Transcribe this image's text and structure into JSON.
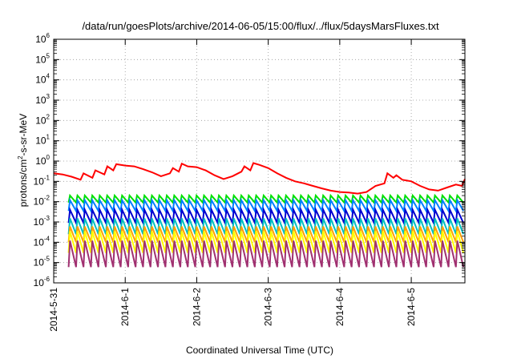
{
  "chart_data": {
    "type": "line",
    "title": "/data/run/goesPlots/archive/2014-06-05/15:00/flux/../flux/5daysMarsFluxes.txt",
    "xlabel": "Coordinated Universal Time (UTC)",
    "ylabel": {
      "prefix": "protons/cm",
      "superscript": "2",
      "suffix": "-s-sr-MeV"
    },
    "y_scale": "log",
    "ylim": [
      1e-06,
      1000000.0
    ],
    "y_ticks": [
      {
        "value": 1e-06,
        "base": "10",
        "exp": "-6"
      },
      {
        "value": 1e-05,
        "base": "10",
        "exp": "-5"
      },
      {
        "value": 0.0001,
        "base": "10",
        "exp": "-4"
      },
      {
        "value": 0.001,
        "base": "10",
        "exp": "-3"
      },
      {
        "value": 0.01,
        "base": "10",
        "exp": "-2"
      },
      {
        "value": 0.1,
        "base": "10",
        "exp": "-1"
      },
      {
        "value": 1,
        "base": "10",
        "exp": "0"
      },
      {
        "value": 10.0,
        "base": "10",
        "exp": "1"
      },
      {
        "value": 100.0,
        "base": "10",
        "exp": "2"
      },
      {
        "value": 1000.0,
        "base": "10",
        "exp": "3"
      },
      {
        "value": 10000.0,
        "base": "10",
        "exp": "4"
      },
      {
        "value": 100000.0,
        "base": "10",
        "exp": "5"
      },
      {
        "value": 1000000.0,
        "base": "10",
        "exp": "6"
      }
    ],
    "xlim": [
      "2014-05-31",
      "2014-06-05 18:00"
    ],
    "x_ticks": [
      {
        "value": "2014-05-31",
        "label": "2014-5-31"
      },
      {
        "value": "2014-06-01",
        "label": "2014-6-1"
      },
      {
        "value": "2014-06-02",
        "label": "2014-6-2"
      },
      {
        "value": "2014-06-03",
        "label": "2014-6-3"
      },
      {
        "value": "2014-06-04",
        "label": "2014-6-4"
      },
      {
        "value": "2014-06-05",
        "label": "2014-6-5"
      }
    ],
    "grid": true,
    "grid_style": "dotted",
    "legend": "none",
    "series": [
      {
        "color": "#ff0000",
        "x": [
          "2014-05-31 00:00",
          "2014-05-31 03:00",
          "2014-05-31 06:00",
          "2014-05-31 09:00",
          "2014-05-31 10:00",
          "2014-05-31 13:00",
          "2014-05-31 14:00",
          "2014-05-31 17:00",
          "2014-05-31 18:00",
          "2014-05-31 20:00",
          "2014-05-31 21:00",
          "2014-06-01 00:00",
          "2014-06-01 03:00",
          "2014-06-01 06:00",
          "2014-06-01 09:00",
          "2014-06-01 12:00",
          "2014-06-01 15:00",
          "2014-06-01 16:00",
          "2014-06-01 18:00",
          "2014-06-01 19:00",
          "2014-06-01 21:00",
          "2014-06-02 00:00",
          "2014-06-02 03:00",
          "2014-06-02 06:00",
          "2014-06-02 09:00",
          "2014-06-02 12:00",
          "2014-06-02 15:00",
          "2014-06-02 16:00",
          "2014-06-02 18:00",
          "2014-06-02 19:00",
          "2014-06-02 21:00",
          "2014-06-03 00:00",
          "2014-06-03 03:00",
          "2014-06-03 06:00",
          "2014-06-03 09:00",
          "2014-06-03 12:00",
          "2014-06-03 15:00",
          "2014-06-03 18:00",
          "2014-06-03 21:00",
          "2014-06-04 00:00",
          "2014-06-04 03:00",
          "2014-06-04 06:00",
          "2014-06-04 09:00",
          "2014-06-04 12:00",
          "2014-06-04 15:00",
          "2014-06-04 16:00",
          "2014-06-04 18:00",
          "2014-06-04 19:00",
          "2014-06-04 21:00",
          "2014-06-05 00:00",
          "2014-06-05 03:00",
          "2014-06-05 06:00",
          "2014-06-05 09:00",
          "2014-06-05 12:00",
          "2014-06-05 15:00",
          "2014-06-05 17:00",
          "2014-06-05 18:00"
        ],
        "y": [
          0.25,
          0.22,
          0.17,
          0.12,
          0.25,
          0.15,
          0.35,
          0.22,
          0.55,
          0.35,
          0.7,
          0.6,
          0.55,
          0.4,
          0.28,
          0.18,
          0.25,
          0.45,
          0.3,
          0.75,
          0.55,
          0.5,
          0.35,
          0.2,
          0.13,
          0.18,
          0.3,
          0.55,
          0.35,
          0.8,
          0.65,
          0.45,
          0.25,
          0.15,
          0.1,
          0.08,
          0.06,
          0.045,
          0.035,
          0.03,
          0.028,
          0.025,
          0.03,
          0.06,
          0.08,
          0.25,
          0.15,
          0.2,
          0.12,
          0.1,
          0.06,
          0.04,
          0.035,
          0.05,
          0.07,
          0.06,
          0.13
        ]
      },
      {
        "color": "#00e000",
        "x_start": "2014-05-31 05:00",
        "x_end": "2014-06-05 18:00",
        "period_hours": 2.5,
        "peak": 0.02,
        "trough": 0.009
      },
      {
        "color": "#0080ff",
        "x_start": "2014-05-31 05:00",
        "x_end": "2014-06-05 18:00",
        "period_hours": 2.5,
        "peak": 0.012,
        "trough": 0.0035
      },
      {
        "color": "#0000d0",
        "x_start": "2014-05-31 05:00",
        "x_end": "2014-06-05 18:00",
        "period_hours": 2.5,
        "peak": 0.004,
        "trough": 0.0009
      },
      {
        "color": "#00c0c0",
        "x_start": "2014-05-31 05:00",
        "x_end": "2014-06-05 18:00",
        "period_hours": 2.5,
        "peak": 0.0015,
        "trough": 0.00025
      },
      {
        "color": "#ffa000",
        "x_start": "2014-05-31 05:00",
        "x_end": "2014-06-05 18:00",
        "period_hours": 2.5,
        "peak": 0.0006,
        "trough": 0.0001
      },
      {
        "color": "#ffff00",
        "x_start": "2014-05-31 05:00",
        "x_end": "2014-06-05 18:00",
        "period_hours": 2.5,
        "peak": 0.00035,
        "trough": 3e-05
      },
      {
        "color": "#a03070",
        "x_start": "2014-05-31 05:00",
        "x_end": "2014-06-05 18:00",
        "period_hours": 2.5,
        "peak": 0.00012,
        "trough": 6e-06
      }
    ]
  }
}
